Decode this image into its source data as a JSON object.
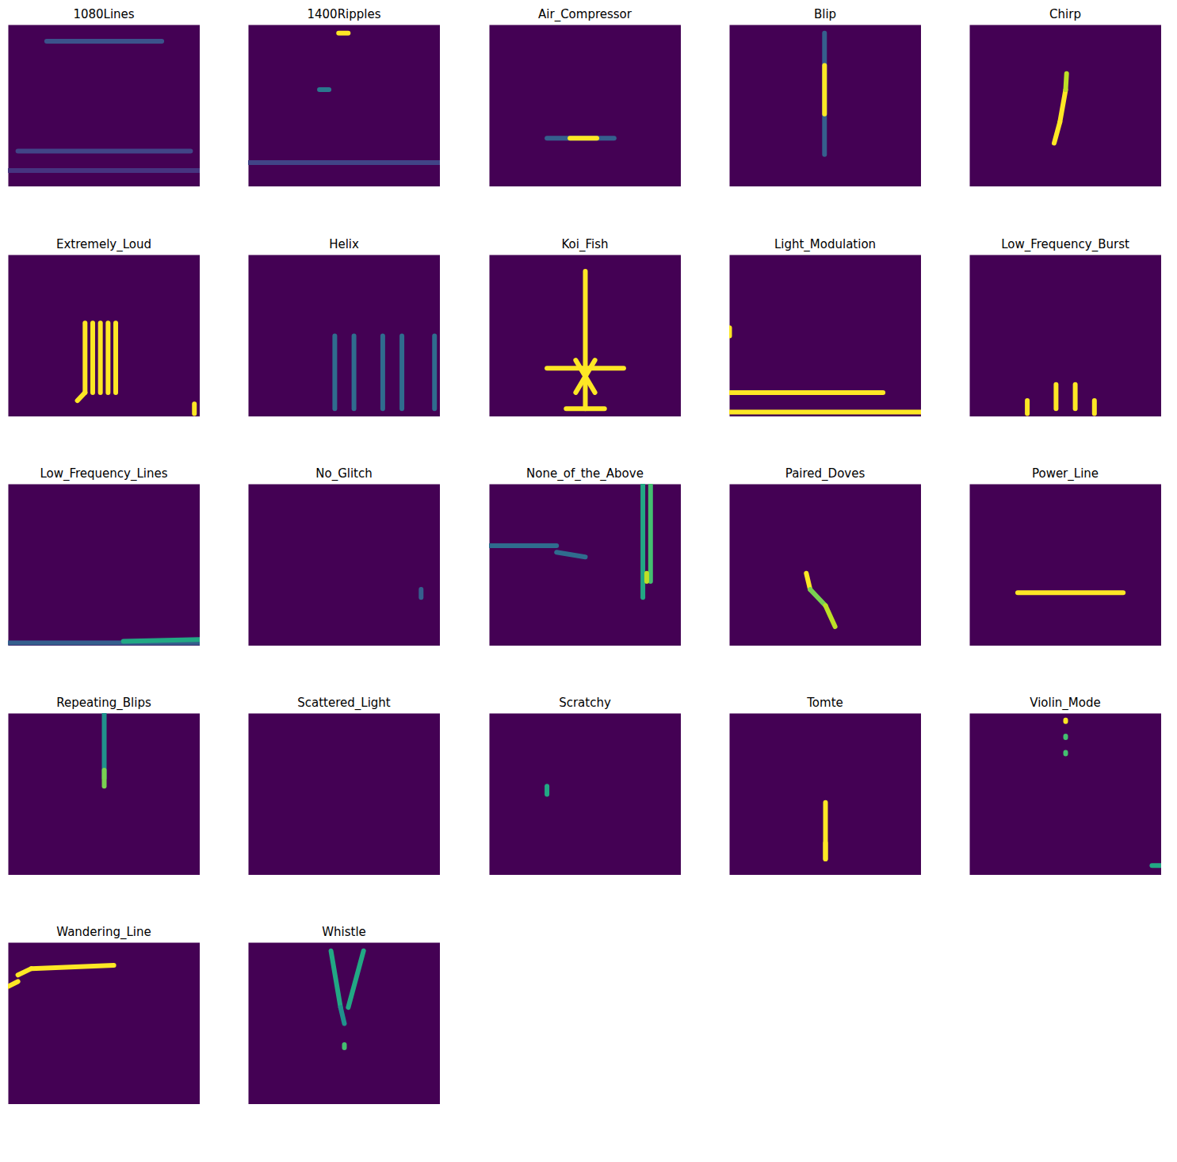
{
  "chart_data": [
    {
      "type": "heatmap",
      "title": "1080Lines",
      "tick_labels": false,
      "xlim": [
        0,
        1
      ],
      "ylim": [
        0,
        1
      ],
      "clim": [
        0,
        1
      ],
      "segments": [
        [
          0.2,
          0.9,
          0.8,
          0.9,
          0.25
        ],
        [
          0.05,
          0.22,
          0.95,
          0.22,
          0.2
        ],
        [
          0,
          0.1,
          1,
          0.1,
          0.15
        ]
      ]
    },
    {
      "type": "heatmap",
      "title": "1400Ripples",
      "tick_labels": false,
      "xlim": [
        0,
        1
      ],
      "ylim": [
        0,
        1
      ],
      "clim": [
        0,
        1
      ],
      "segments": [
        [
          0.47,
          0.95,
          0.52,
          0.95,
          1
        ],
        [
          0.37,
          0.6,
          0.42,
          0.6,
          0.4
        ],
        [
          0,
          0.15,
          1,
          0.15,
          0.2
        ]
      ]
    },
    {
      "type": "heatmap",
      "title": "Air_Compressor",
      "tick_labels": false,
      "xlim": [
        0,
        1
      ],
      "ylim": [
        0,
        1
      ],
      "clim": [
        0,
        1
      ],
      "segments": [
        [
          0.3,
          0.3,
          0.65,
          0.3,
          0.3
        ],
        [
          0.42,
          0.3,
          0.56,
          0.3,
          1
        ]
      ]
    },
    {
      "type": "heatmap",
      "title": "Blip",
      "tick_labels": false,
      "xlim": [
        0,
        1
      ],
      "ylim": [
        0,
        1
      ],
      "clim": [
        0,
        1
      ],
      "segments": [
        [
          0.495,
          0.2,
          0.495,
          0.95,
          0.3
        ],
        [
          0.495,
          0.45,
          0.495,
          0.75,
          1
        ]
      ]
    },
    {
      "type": "heatmap",
      "title": "Chirp",
      "tick_labels": false,
      "xlim": [
        0,
        1
      ],
      "ylim": [
        0,
        1
      ],
      "clim": [
        0,
        1
      ],
      "segments": [
        [
          0.44,
          0.27,
          0.47,
          0.4,
          1
        ],
        [
          0.47,
          0.4,
          0.5,
          0.6,
          1
        ],
        [
          0.5,
          0.6,
          0.505,
          0.7,
          0.9
        ]
      ]
    },
    {
      "type": "heatmap",
      "title": "Extremely_Loud",
      "tick_labels": false,
      "xlim": [
        0,
        1
      ],
      "ylim": [
        0,
        1
      ],
      "clim": [
        0,
        1
      ],
      "segments": [
        [
          0.4,
          0.15,
          0.4,
          0.58,
          1
        ],
        [
          0.44,
          0.15,
          0.44,
          0.58,
          1
        ],
        [
          0.48,
          0.15,
          0.48,
          0.58,
          1
        ],
        [
          0.52,
          0.15,
          0.52,
          0.58,
          1
        ],
        [
          0.56,
          0.15,
          0.56,
          0.58,
          1
        ],
        [
          0.36,
          0.1,
          0.4,
          0.15,
          1
        ],
        [
          0.97,
          0.02,
          0.97,
          0.08,
          1
        ]
      ]
    },
    {
      "type": "heatmap",
      "title": "Helix",
      "tick_labels": false,
      "xlim": [
        0,
        1
      ],
      "ylim": [
        0,
        1
      ],
      "clim": [
        0,
        1
      ],
      "segments": [
        [
          0.45,
          0.05,
          0.45,
          0.5,
          0.35
        ],
        [
          0.55,
          0.05,
          0.55,
          0.5,
          0.35
        ],
        [
          0.7,
          0.05,
          0.7,
          0.5,
          0.35
        ],
        [
          0.8,
          0.05,
          0.8,
          0.5,
          0.35
        ],
        [
          0.97,
          0.05,
          0.97,
          0.5,
          0.35
        ]
      ]
    },
    {
      "type": "heatmap",
      "title": "Koi_Fish",
      "tick_labels": false,
      "xlim": [
        0,
        1
      ],
      "ylim": [
        0,
        1
      ],
      "clim": [
        0,
        1
      ],
      "segments": [
        [
          0.5,
          0.05,
          0.5,
          0.9,
          1
        ],
        [
          0.3,
          0.3,
          0.7,
          0.3,
          1
        ],
        [
          0.4,
          0.05,
          0.6,
          0.05,
          1
        ],
        [
          0.45,
          0.15,
          0.55,
          0.35,
          1
        ],
        [
          0.55,
          0.15,
          0.45,
          0.35,
          1
        ]
      ]
    },
    {
      "type": "heatmap",
      "title": "Light_Modulation",
      "tick_labels": false,
      "xlim": [
        0,
        1
      ],
      "ylim": [
        0,
        1
      ],
      "clim": [
        0,
        1
      ],
      "segments": [
        [
          0,
          0.15,
          0.8,
          0.15,
          1
        ],
        [
          0,
          0.03,
          1,
          0.03,
          1
        ],
        [
          0,
          0.5,
          0,
          0.55,
          1
        ]
      ]
    },
    {
      "type": "heatmap",
      "title": "Low_Frequency_Burst",
      "tick_labels": false,
      "xlim": [
        0,
        1
      ],
      "ylim": [
        0,
        1
      ],
      "clim": [
        0,
        1
      ],
      "segments": [
        [
          0.45,
          0.05,
          0.45,
          0.2,
          1
        ],
        [
          0.55,
          0.05,
          0.55,
          0.2,
          1
        ],
        [
          0.3,
          0.02,
          0.3,
          0.1,
          1
        ],
        [
          0.65,
          0.02,
          0.65,
          0.1,
          1
        ]
      ]
    },
    {
      "type": "heatmap",
      "title": "Low_Frequency_Lines",
      "tick_labels": false,
      "xlim": [
        0,
        1
      ],
      "ylim": [
        0,
        1
      ],
      "clim": [
        0,
        1
      ],
      "segments": [
        [
          0,
          0.02,
          1,
          0.02,
          0.3
        ],
        [
          0.6,
          0.03,
          1,
          0.04,
          0.6
        ]
      ]
    },
    {
      "type": "heatmap",
      "title": "No_Glitch",
      "tick_labels": false,
      "xlim": [
        0,
        1
      ],
      "ylim": [
        0,
        1
      ],
      "clim": [
        0,
        1
      ],
      "segments": [
        [
          0.9,
          0.3,
          0.9,
          0.35,
          0.3
        ]
      ]
    },
    {
      "type": "heatmap",
      "title": "None_of_the_Above",
      "tick_labels": false,
      "xlim": [
        0,
        1
      ],
      "ylim": [
        0,
        1
      ],
      "clim": [
        0,
        1
      ],
      "segments": [
        [
          0,
          0.62,
          0.35,
          0.62,
          0.35
        ],
        [
          0.35,
          0.58,
          0.5,
          0.55,
          0.35
        ],
        [
          0.8,
          0.3,
          0.8,
          1,
          0.6
        ],
        [
          0.84,
          0.4,
          0.84,
          1,
          0.7
        ],
        [
          0.82,
          0.4,
          0.82,
          0.45,
          0.9
        ]
      ]
    },
    {
      "type": "heatmap",
      "title": "Paired_Doves",
      "tick_labels": false,
      "xlim": [
        0,
        1
      ],
      "ylim": [
        0,
        1
      ],
      "clim": [
        0,
        1
      ],
      "segments": [
        [
          0.4,
          0.45,
          0.42,
          0.35,
          1
        ],
        [
          0.42,
          0.35,
          0.5,
          0.25,
          0.8
        ],
        [
          0.5,
          0.25,
          0.55,
          0.12,
          0.9
        ]
      ]
    },
    {
      "type": "heatmap",
      "title": "Power_Line",
      "tick_labels": false,
      "xlim": [
        0,
        1
      ],
      "ylim": [
        0,
        1
      ],
      "clim": [
        0,
        1
      ],
      "segments": [
        [
          0.25,
          0.33,
          0.8,
          0.33,
          1
        ]
      ]
    },
    {
      "type": "heatmap",
      "title": "Repeating_Blips",
      "tick_labels": false,
      "xlim": [
        0,
        1
      ],
      "ylim": [
        0,
        1
      ],
      "clim": [
        0,
        1
      ],
      "segments": [
        [
          0.5,
          0.6,
          0.5,
          1,
          0.5
        ],
        [
          0.5,
          0.55,
          0.5,
          0.65,
          0.8
        ]
      ]
    },
    {
      "type": "heatmap",
      "title": "Scattered_Light",
      "tick_labels": false,
      "xlim": [
        0,
        1
      ],
      "ylim": [
        0,
        1
      ],
      "clim": [
        0,
        1
      ],
      "segments": []
    },
    {
      "type": "heatmap",
      "title": "Scratchy",
      "tick_labels": false,
      "xlim": [
        0,
        1
      ],
      "ylim": [
        0,
        1
      ],
      "clim": [
        0,
        1
      ],
      "segments": [
        [
          0.3,
          0.5,
          0.3,
          0.55,
          0.6
        ]
      ]
    },
    {
      "type": "heatmap",
      "title": "Tomte",
      "tick_labels": false,
      "xlim": [
        0,
        1
      ],
      "ylim": [
        0,
        1
      ],
      "clim": [
        0,
        1
      ],
      "segments": [
        [
          0.5,
          0.1,
          0.5,
          0.45,
          1
        ],
        [
          0.5,
          0.1,
          0.5,
          0.2,
          1
        ]
      ]
    },
    {
      "type": "heatmap",
      "title": "Violin_Mode",
      "tick_labels": false,
      "xlim": [
        0,
        1
      ],
      "ylim": [
        0,
        1
      ],
      "clim": [
        0,
        1
      ],
      "segments": [
        [
          0.5,
          0.95,
          0.5,
          0.96,
          1
        ],
        [
          0.5,
          0.85,
          0.5,
          0.86,
          0.7
        ],
        [
          0.5,
          0.75,
          0.5,
          0.76,
          0.7
        ],
        [
          0.95,
          0.06,
          1,
          0.06,
          0.6
        ]
      ]
    },
    {
      "type": "heatmap",
      "title": "Wandering_Line",
      "tick_labels": false,
      "xlim": [
        0,
        1
      ],
      "ylim": [
        0,
        1
      ],
      "clim": [
        0,
        1
      ],
      "segments": [
        [
          0,
          0.73,
          0.05,
          0.76,
          1
        ],
        [
          0.05,
          0.8,
          0.12,
          0.84,
          1
        ],
        [
          0.12,
          0.84,
          0.55,
          0.86,
          1
        ]
      ]
    },
    {
      "type": "heatmap",
      "title": "Whistle",
      "tick_labels": false,
      "xlim": [
        0,
        1
      ],
      "ylim": [
        0,
        1
      ],
      "clim": [
        0,
        1
      ],
      "segments": [
        [
          0.43,
          0.95,
          0.48,
          0.6,
          0.6
        ],
        [
          0.6,
          0.95,
          0.52,
          0.6,
          0.6
        ],
        [
          0.48,
          0.6,
          0.5,
          0.5,
          0.5
        ],
        [
          0.5,
          0.35,
          0.5,
          0.37,
          0.7
        ]
      ]
    }
  ]
}
